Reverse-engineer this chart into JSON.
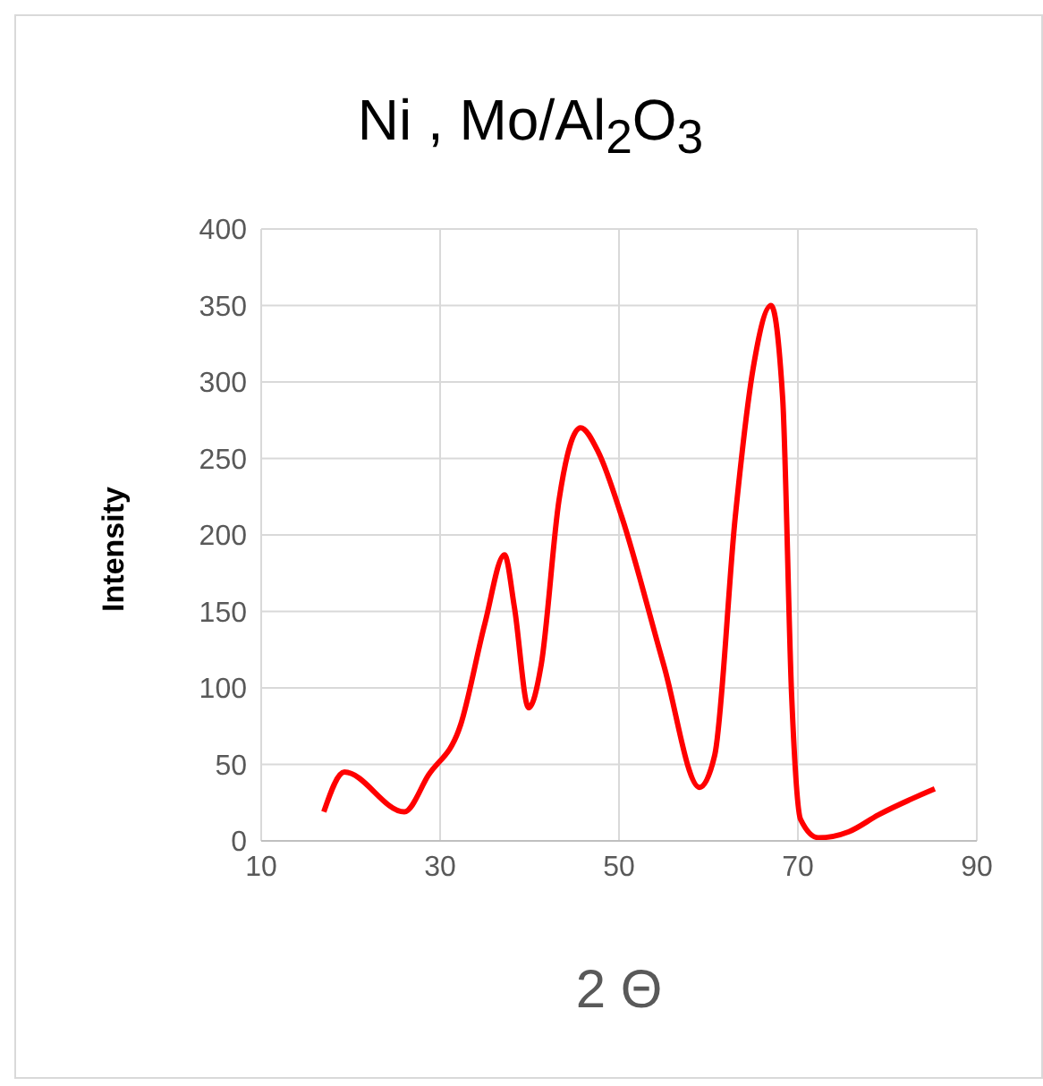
{
  "chart_data": {
    "type": "line",
    "title": "Ni , Mo/Al$_{2}$O$_{3}$",
    "xlabel": "2 Θ",
    "ylabel": "Intensity",
    "xlim": [
      10,
      90
    ],
    "xticks": [
      10,
      30,
      50,
      70,
      90
    ],
    "ylim": [
      0,
      400
    ],
    "yticks": [
      0,
      50,
      100,
      150,
      200,
      250,
      300,
      350,
      400
    ],
    "grid": true,
    "marker": "none",
    "line_style": "solid",
    "series": [
      {
        "color": "#ff0000",
        "x": [
          17,
          19.3,
          26,
          28.7,
          32.3,
          35,
          37.2,
          38.3,
          39.9,
          41.3,
          43.3,
          45.7,
          47.7,
          50.3,
          55,
          59,
          60.7,
          63,
          65,
          67,
          68.3,
          69.3,
          70.3,
          72.3,
          75.7,
          79,
          85.3
        ],
        "values": [
          19,
          45,
          19,
          43,
          76,
          142,
          187,
          153,
          87,
          115,
          223,
          270,
          254,
          212,
          115,
          35,
          56,
          212,
          309,
          350,
          289,
          95,
          14,
          2,
          6,
          17,
          34
        ]
      }
    ]
  }
}
